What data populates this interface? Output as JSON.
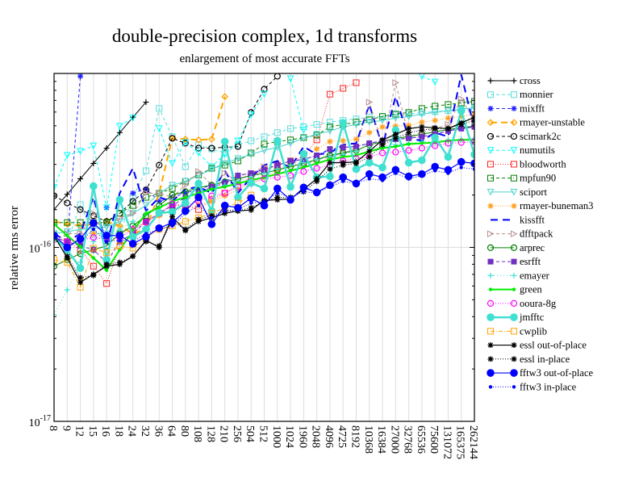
{
  "chart_data": {
    "type": "line",
    "title": "double-precision complex, 1d transforms",
    "subtitle": "enlargement of most accurate FFTs",
    "xlabel": "",
    "ylabel": "relative rms error",
    "yscale": "log",
    "ylim": [
      1e-17,
      1e-15
    ],
    "value_scale": 1e-16,
    "yticks": [
      {
        "value": 1e-16,
        "base": "10",
        "exp": "-16"
      },
      {
        "value": 1e-17,
        "base": "10",
        "exp": "-17"
      }
    ],
    "grid": "vertical",
    "legend_position": "right",
    "categories": [
      "8",
      "9",
      "12",
      "15",
      "16",
      "18",
      "24",
      "32",
      "36",
      "64",
      "80",
      "108",
      "128",
      "210",
      "256",
      "504",
      "512",
      "1000",
      "1024",
      "1960",
      "2048",
      "4096",
      "4725",
      "8192",
      "10368",
      "16384",
      "27000",
      "32768",
      "65536",
      "75600",
      "131072",
      "165375",
      "262144"
    ],
    "series": [
      {
        "name": "cross",
        "color": "#000000",
        "dash": "",
        "marker": "plus",
        "width": 1,
        "values": [
          1.65,
          2.02,
          2.48,
          3.04,
          3.72,
          4.57,
          5.6,
          6.84,
          null,
          null,
          null,
          null,
          null,
          null,
          null,
          null,
          null,
          null,
          null,
          null,
          null,
          null,
          null,
          null,
          null,
          null,
          null,
          null,
          null,
          null,
          null,
          null,
          null
        ]
      },
      {
        "name": "monnier",
        "color": "#55dddd",
        "dash": "4,3",
        "marker": "square",
        "width": 1,
        "values": [
          1.2,
          1.08,
          1.76,
          1.2,
          1.2,
          1.2,
          1.94,
          2.76,
          6.29,
          4.33,
          2.91,
          3.89,
          3.68,
          3.49,
          3.89,
          4.1,
          4.33,
          4.57,
          4.82,
          4.93,
          5.09,
          5.25,
          5.37,
          5.48,
          5.6,
          5.66,
          5.78,
          5.84,
          5.97,
          6.03,
          6.1,
          6.16,
          6.23
        ]
      },
      {
        "name": "mixfft",
        "color": "#2020ff",
        "dash": "4,3",
        "marker": "asterisk",
        "width": 1,
        "values": [
          1.14,
          1.08,
          9.64,
          null,
          1.69,
          null,
          2.05,
          2.16,
          1.84,
          1.94,
          2.05,
          2.16,
          2.28,
          2.4,
          2.59,
          2.67,
          2.82,
          2.97,
          3.14,
          3.2,
          3.38,
          3.64,
          3.76,
          3.8,
          3.97,
          4.1,
          4.19,
          4.24,
          4.33,
          4.47,
          4.67,
          4.82,
          4.93
        ]
      },
      {
        "name": "rmayer-unstable",
        "color": "#ffa500",
        "dash": "8,5",
        "marker": "diamond",
        "width": 2,
        "values": [
          1.41,
          1.36,
          1.33,
          1.36,
          1.41,
          1.33,
          1.2,
          1.27,
          2.05,
          4.24,
          4.19,
          4.15,
          4.19,
          7.36,
          null,
          null,
          null,
          null,
          null,
          null,
          null,
          null,
          null,
          null,
          null,
          null,
          null,
          null,
          null,
          null,
          null,
          null,
          null
        ]
      },
      {
        "name": "scimark2c",
        "color": "#000000",
        "dash": "4,3",
        "marker": "circle",
        "width": 1,
        "values": [
          1.98,
          1.8,
          1.65,
          1.52,
          1.41,
          1.57,
          1.84,
          2.14,
          2.97,
          4.24,
          3.97,
          3.72,
          3.72,
          3.76,
          3.8,
          5.97,
          8.12,
          9.64,
          null,
          null,
          null,
          null,
          null,
          null,
          null,
          null,
          null,
          null,
          null,
          null,
          null,
          null,
          null
        ]
      },
      {
        "name": "numutils",
        "color": "#00ffff",
        "dash": "4,3",
        "marker": "tri-down",
        "width": 1,
        "values": [
          2.21,
          3.38,
          3.57,
          3.84,
          1.69,
          4.98,
          5.54,
          null,
          4.82,
          3.04,
          4.01,
          3.49,
          2.91,
          3.42,
          4.1,
          5.78,
          7.6,
          null,
          9.33,
          4.72,
          null,
          null,
          null,
          null,
          null,
          null,
          null,
          null,
          9.64,
          8.93,
          null,
          null,
          null
        ]
      },
      {
        "name": "bloodworth",
        "color": "#ff2020",
        "dash": "1,2",
        "marker": "square",
        "width": 1,
        "values": [
          1.14,
          1.08,
          0.97,
          0.78,
          0.62,
          1.02,
          1.2,
          1.41,
          1.57,
          1.74,
          1.74,
          1.65,
          1.88,
          2.05,
          2.28,
          2.53,
          2.82,
          2.97,
          3.14,
          3.31,
          4.15,
          7.6,
          8.21,
          8.85,
          null,
          null,
          null,
          null,
          null,
          null,
          null,
          null,
          null
        ]
      },
      {
        "name": "mpfun90",
        "color": "#008000",
        "dash": "4,3",
        "marker": "square",
        "width": 1,
        "values": [
          1.39,
          1.39,
          1.39,
          1.39,
          1.39,
          1.57,
          1.74,
          1.94,
          2.05,
          2.18,
          2.4,
          2.61,
          2.85,
          2.97,
          3.14,
          3.49,
          3.93,
          4.06,
          4.15,
          4.28,
          4.42,
          4.93,
          5.09,
          5.25,
          5.42,
          5.66,
          5.84,
          5.97,
          6.29,
          6.49,
          6.63,
          6.77,
          6.91
        ]
      },
      {
        "name": "sciport",
        "color": "#48d1cc",
        "dash": "",
        "marker": "tri-down",
        "width": 1,
        "values": [
          1.2,
          1.23,
          1.27,
          1.29,
          1.31,
          1.41,
          1.57,
          1.74,
          2.05,
          2.28,
          2.4,
          2.59,
          2.82,
          3.04,
          3.24,
          3.42,
          3.61,
          3.76,
          3.97,
          4.24,
          4.47,
          4.67,
          4.93,
          5.09,
          5.25,
          5.37,
          5.54,
          5.66,
          5.84,
          5.97,
          6.1,
          6.23,
          6.36
        ]
      },
      {
        "name": "rmayer-buneman3",
        "color": "#ffa020",
        "dash": "1,2",
        "marker": "asterisk",
        "width": 1,
        "values": [
          1.14,
          1.08,
          1.08,
          1.2,
          1.14,
          1.2,
          1.27,
          1.41,
          1.52,
          1.62,
          1.69,
          1.76,
          1.84,
          1.98,
          2.14,
          2.33,
          2.53,
          2.76,
          2.97,
          3.31,
          3.68,
          4.06,
          4.1,
          4.19,
          4.57,
          4.93,
          4.98,
          5.03,
          5.25,
          5.37,
          5.54,
          5.66,
          5.84
        ]
      },
      {
        "name": "kissfft",
        "color": "#0000ff",
        "dash": "9,6",
        "marker": "none",
        "width": 2,
        "values": [
          1.2,
          1.08,
          1.2,
          1.94,
          1.02,
          2.05,
          2.85,
          1.62,
          1.94,
          1.84,
          2.16,
          2.23,
          2.05,
          2.76,
          2.05,
          2.53,
          2.97,
          3.14,
          2.88,
          3.8,
          3.42,
          3.49,
          3.89,
          3.97,
          6.63,
          3.8,
          7.36,
          4.24,
          4.1,
          4.57,
          4.33,
          9.85,
          4.82
        ]
      },
      {
        "name": "dfftpack",
        "color": "#bc8f8f",
        "dash": "4,3",
        "marker": "tri-right",
        "width": 1,
        "values": [
          1.08,
          1.2,
          1.2,
          1.57,
          1.08,
          1.48,
          1.57,
          2.05,
          2.05,
          1.94,
          2.28,
          2.73,
          2.28,
          2.67,
          2.4,
          2.67,
          2.91,
          2.76,
          3.14,
          2.97,
          3.2,
          3.31,
          3.49,
          3.68,
          6.84,
          3.89,
          8.85,
          4.33,
          4.57,
          4.82,
          5.09,
          7.13,
          5.37
        ]
      },
      {
        "name": "arprec",
        "color": "#008000",
        "dash": "",
        "marker": "circle",
        "width": 1,
        "values": [
          0.78,
          0.85,
          0.92,
          0.97,
          1.02,
          1.2,
          1.33,
          1.52,
          1.74,
          2.0,
          2.09,
          2.21,
          2.28,
          2.38,
          2.48,
          2.59,
          2.67,
          2.79,
          2.91,
          3.04,
          3.2,
          3.38,
          3.49,
          3.61,
          3.89,
          4.06,
          4.24,
          4.33,
          4.47,
          4.62,
          4.76,
          4.87,
          4.98
        ]
      },
      {
        "name": "esrfft",
        "color": "#7030c0",
        "dash": "4,3",
        "marker": "square-filled",
        "width": 1,
        "values": [
          1.14,
          1.08,
          1.02,
          0.97,
          0.82,
          1.08,
          1.2,
          1.41,
          1.57,
          1.74,
          1.94,
          2.05,
          2.23,
          2.33,
          2.59,
          2.67,
          2.79,
          2.97,
          3.14,
          3.2,
          3.38,
          3.68,
          3.76,
          3.8,
          3.97,
          4.1,
          4.19,
          4.24,
          4.33,
          4.47,
          4.67,
          4.82,
          4.93
        ]
      },
      {
        "name": "emayer",
        "color": "#40e0d0",
        "dash": "1,3",
        "marker": "plus",
        "width": 1,
        "values": [
          0.41,
          0.57,
          0.82,
          1.08,
          1.2,
          1.27,
          1.41,
          1.57,
          1.69,
          1.84,
          1.94,
          2.05,
          2.16,
          2.28,
          2.4,
          2.53,
          2.67,
          2.82,
          2.97,
          3.07,
          3.2,
          3.31,
          3.42,
          3.57,
          3.68,
          3.8,
          3.89,
          3.97,
          4.06,
          4.1,
          4.15,
          4.19,
          4.24
        ]
      },
      {
        "name": "green",
        "color": "#00ee00",
        "dash": "",
        "marker": "dot-small",
        "width": 2,
        "values": [
          1.36,
          1.17,
          1.01,
          0.87,
          0.74,
          0.97,
          1.24,
          1.57,
          1.69,
          1.84,
          1.94,
          2.05,
          2.16,
          2.23,
          2.33,
          2.43,
          2.53,
          2.64,
          2.76,
          2.88,
          3.04,
          3.2,
          3.31,
          3.38,
          3.57,
          3.72,
          3.8,
          3.93,
          3.97,
          4.01,
          4.1,
          4.15,
          4.15
        ]
      },
      {
        "name": "ooura-8g",
        "color": "#ff00ff",
        "dash": "1,2",
        "marker": "circle",
        "width": 1,
        "values": [
          1.14,
          1.08,
          1.1,
          1.14,
          1.11,
          1.14,
          1.27,
          1.39,
          1.57,
          1.78,
          1.74,
          1.84,
          1.98,
          2.05,
          2.23,
          2.33,
          2.48,
          2.53,
          2.59,
          2.73,
          2.85,
          2.97,
          3.14,
          3.24,
          3.31,
          3.49,
          3.53,
          3.61,
          3.72,
          3.84,
          3.97,
          4.01,
          4.06
        ]
      },
      {
        "name": "jmfftc",
        "color": "#40e0d0",
        "dash": "",
        "marker": "dot-large",
        "width": 2.5,
        "values": [
          1.14,
          0.97,
          0.76,
          2.25,
          0.85,
          1.88,
          1.15,
          1.27,
          1.58,
          1.6,
          1.8,
          2.33,
          1.62,
          4.06,
          1.94,
          2.35,
          2.18,
          4.1,
          2.23,
          3.45,
          2.53,
          2.56,
          5.2,
          2.82,
          3.07,
          2.88,
          4.72,
          3.07,
          3.17,
          4.28,
          3.31,
          6.1,
          3.42
        ]
      },
      {
        "name": "cwplib",
        "color": "#ffa500",
        "dash": "5,2,1,2",
        "marker": "square",
        "width": 1,
        "values": [
          0.85,
          0.82,
          0.59,
          0.99,
          0.93,
          1.02,
          0.99,
          1.14,
          1.27,
          1.33,
          1.41,
          1.48,
          1.57,
          1.69,
          1.8,
          2.0,
          null,
          null,
          null,
          null,
          null,
          null,
          null,
          null,
          null,
          null,
          null,
          null,
          null,
          null,
          null,
          null,
          null
        ]
      },
      {
        "name": "essl out-of-place",
        "color": "#000000",
        "dash": "",
        "marker": "asterisk",
        "width": 1.2,
        "values": [
          1.17,
          0.87,
          0.63,
          0.7,
          0.78,
          0.8,
          0.89,
          1.1,
          1.0,
          1.5,
          1.25,
          1.41,
          1.48,
          1.57,
          1.62,
          1.64,
          1.86,
          1.88,
          1.9,
          2.16,
          2.48,
          3.07,
          3.07,
          3.1,
          3.57,
          4.15,
          4.47,
          4.82,
          4.93,
          4.87,
          4.82,
          5.2,
          5.6
        ]
      },
      {
        "name": "essl in-place",
        "color": "#000000",
        "dash": "1,2",
        "marker": "asterisk",
        "width": 1,
        "values": [
          1.14,
          0.89,
          0.67,
          0.69,
          0.8,
          0.82,
          0.89,
          1.08,
          1.02,
          1.41,
          1.27,
          1.45,
          1.52,
          1.62,
          1.62,
          1.69,
          1.84,
          1.94,
          1.94,
          2.09,
          2.4,
          2.82,
          2.97,
          3.04,
          3.31,
          3.89,
          4.24,
          4.57,
          4.72,
          4.82,
          4.82,
          5.09,
          5.37
        ]
      },
      {
        "name": "fftw3 out-of-place",
        "color": "#0000ff",
        "dash": "",
        "marker": "dot-large",
        "width": 1.2,
        "values": [
          1.17,
          1.0,
          1.12,
          1.38,
          1.17,
          1.17,
          1.05,
          1.15,
          1.29,
          1.39,
          1.62,
          1.94,
          1.36,
          1.74,
          1.69,
          1.92,
          1.74,
          2.18,
          1.88,
          2.21,
          2.07,
          2.28,
          2.53,
          2.33,
          2.64,
          2.53,
          2.79,
          2.56,
          2.64,
          2.91,
          2.79,
          3.1,
          3.04
        ]
      },
      {
        "name": "fftw3 in-place",
        "color": "#0000ff",
        "dash": "1,2",
        "marker": "dot-small",
        "width": 1,
        "values": [
          1.14,
          1.02,
          1.08,
          1.27,
          1.08,
          1.1,
          1.08,
          1.2,
          1.27,
          1.33,
          1.57,
          1.74,
          1.48,
          1.62,
          1.65,
          1.8,
          1.84,
          2.05,
          1.94,
          2.09,
          2.05,
          2.23,
          2.4,
          2.33,
          2.48,
          2.43,
          2.67,
          2.48,
          2.59,
          2.76,
          2.67,
          2.88,
          2.82
        ]
      }
    ]
  }
}
